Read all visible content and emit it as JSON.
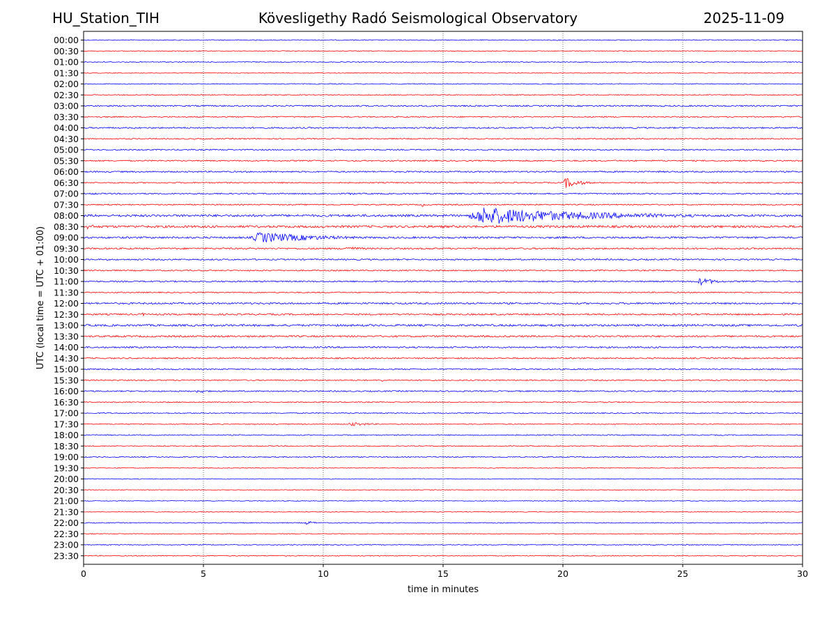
{
  "header": {
    "station": "HU_Station_TIH",
    "observatory": "Kövesligethy Radó Seismological Observatory",
    "date": "2025-11-09"
  },
  "chart_data": {
    "type": "line",
    "title": "Kövesligethy Radó Seismological Observatory",
    "xlabel": "time in minutes",
    "ylabel": "UTC (local time = UTC + 01:00)",
    "xlim": [
      0,
      30
    ],
    "x_ticks": [
      "0",
      "5",
      "10",
      "15",
      "20",
      "25",
      "30"
    ],
    "x_tick_values": [
      0,
      5,
      10,
      15,
      20,
      25,
      30
    ],
    "grid": "vertical dotted lines at x ticks",
    "colors": {
      "even_rows": "#0000ff",
      "odd_rows": "#ff0000",
      "grid": "#000000"
    },
    "rows": [
      "00:00",
      "00:30",
      "01:00",
      "01:30",
      "02:00",
      "02:30",
      "03:00",
      "03:30",
      "04:00",
      "04:30",
      "05:00",
      "05:30",
      "06:00",
      "06:30",
      "07:00",
      "07:30",
      "08:00",
      "08:30",
      "09:00",
      "09:30",
      "10:00",
      "10:30",
      "11:00",
      "11:30",
      "12:00",
      "12:30",
      "13:00",
      "13:30",
      "14:00",
      "14:30",
      "15:00",
      "15:30",
      "16:00",
      "16:30",
      "17:00",
      "17:30",
      "18:00",
      "18:30",
      "19:00",
      "19:30",
      "20:00",
      "20:30",
      "21:00",
      "21:30",
      "22:00",
      "22:30",
      "23:00",
      "23:30"
    ],
    "noise_levels": [
      0.6,
      0.5,
      0.6,
      0.5,
      0.6,
      0.6,
      1.0,
      0.8,
      1.0,
      0.8,
      0.9,
      0.9,
      1.0,
      0.8,
      0.9,
      0.8,
      1.6,
      1.6,
      1.3,
      1.1,
      1.0,
      0.9,
      1.0,
      0.8,
      1.2,
      1.1,
      1.4,
      1.2,
      1.1,
      0.9,
      0.9,
      0.8,
      0.9,
      0.7,
      0.7,
      0.6,
      0.7,
      0.6,
      0.7,
      0.5,
      0.5,
      0.5,
      0.5,
      0.5,
      0.6,
      0.5,
      0.6,
      0.6
    ],
    "events": [
      {
        "row": "00:00",
        "start_min": 29.3,
        "duration_min": 0.3,
        "amplitude": 2
      },
      {
        "row": "06:30",
        "start_min": 20.0,
        "duration_min": 1.3,
        "amplitude": 8
      },
      {
        "row": "07:00",
        "start_min": 0.3,
        "duration_min": 0.6,
        "amplitude": 2
      },
      {
        "row": "07:00",
        "start_min": 11.0,
        "duration_min": 0.6,
        "amplitude": 3
      },
      {
        "row": "07:30",
        "start_min": 14.1,
        "duration_min": 0.3,
        "amplitude": 3
      },
      {
        "row": "08:00",
        "start_min": 15.9,
        "duration_min": 10.0,
        "amplitude": 13
      },
      {
        "row": "08:30",
        "start_min": 0.0,
        "duration_min": 1.2,
        "amplitude": 4
      },
      {
        "row": "09:00",
        "start_min": 6.9,
        "duration_min": 5.5,
        "amplitude": 8
      },
      {
        "row": "09:30",
        "start_min": 10.8,
        "duration_min": 2.0,
        "amplitude": 3
      },
      {
        "row": "11:00",
        "start_min": 25.6,
        "duration_min": 1.4,
        "amplitude": 6
      },
      {
        "row": "12:30",
        "start_min": 2.4,
        "duration_min": 0.4,
        "amplitude": 3
      },
      {
        "row": "15:30",
        "start_min": 12.4,
        "duration_min": 0.3,
        "amplitude": 3
      },
      {
        "row": "16:00",
        "start_min": 4.7,
        "duration_min": 0.8,
        "amplitude": 4
      },
      {
        "row": "17:30",
        "start_min": 11.0,
        "duration_min": 1.8,
        "amplitude": 3
      },
      {
        "row": "22:00",
        "start_min": 9.2,
        "duration_min": 0.9,
        "amplitude": 3
      },
      {
        "row": "23:00",
        "start_min": 25.0,
        "duration_min": 0.5,
        "amplitude": 2
      }
    ]
  }
}
